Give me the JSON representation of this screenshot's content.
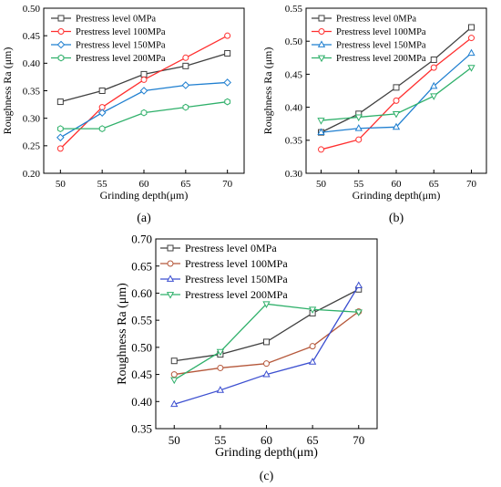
{
  "chart_data": [
    {
      "panel_label": "(a)",
      "type": "line",
      "xlabel": "Grinding depth(μm)",
      "ylabel": "Roughness Ra (μm)",
      "x": [
        50,
        55,
        60,
        65,
        70
      ],
      "xticks": [
        "50",
        "55",
        "60",
        "65",
        "70"
      ],
      "ylim": [
        0.2,
        0.5
      ],
      "yticks": [
        "0.20",
        "0.25",
        "0.30",
        "0.35",
        "0.40",
        "0.45",
        "0.50"
      ],
      "grid": false,
      "legend_position": "top-left",
      "series": [
        {
          "name": "Prestress level 0MPa",
          "values": [
            0.33,
            0.35,
            0.38,
            0.395,
            0.418
          ],
          "color": "#404040",
          "marker": "square"
        },
        {
          "name": "Prestress level 100MPa",
          "values": [
            0.245,
            0.32,
            0.37,
            0.41,
            0.45
          ],
          "color": "#ff2f2f",
          "marker": "circle"
        },
        {
          "name": "Prestress level 150MPa",
          "values": [
            0.265,
            0.31,
            0.35,
            0.36,
            0.365
          ],
          "color": "#1f7fd0",
          "marker": "diamond"
        },
        {
          "name": "Prestress level 200MPa",
          "values": [
            0.281,
            0.281,
            0.31,
            0.32,
            0.33
          ],
          "color": "#2fb06a",
          "marker": "hexagon"
        }
      ]
    },
    {
      "panel_label": "(b)",
      "type": "line",
      "xlabel": "Grinding depth(μm)",
      "ylabel": "Roughness Ra (μm)",
      "x": [
        50,
        55,
        60,
        65,
        70
      ],
      "xticks": [
        "50",
        "55",
        "60",
        "65",
        "70"
      ],
      "ylim": [
        0.3,
        0.55
      ],
      "yticks": [
        "0.30",
        "0.35",
        "0.40",
        "0.45",
        "0.50",
        "0.55"
      ],
      "grid": false,
      "legend_position": "top-left",
      "series": [
        {
          "name": "Prestress level 0MPa",
          "values": [
            0.362,
            0.39,
            0.43,
            0.472,
            0.521
          ],
          "color": "#404040",
          "marker": "square"
        },
        {
          "name": "Prestress level 100MPa",
          "values": [
            0.336,
            0.351,
            0.41,
            0.46,
            0.505
          ],
          "color": "#ff2f2f",
          "marker": "circle"
        },
        {
          "name": "Prestress level 150MPa",
          "values": [
            0.362,
            0.368,
            0.37,
            0.432,
            0.482
          ],
          "color": "#1f7fd0",
          "marker": "triangle"
        },
        {
          "name": "Prestress level 200MPa",
          "values": [
            0.38,
            0.385,
            0.39,
            0.417,
            0.46
          ],
          "color": "#2fb06a",
          "marker": "triangle-down"
        }
      ]
    },
    {
      "panel_label": "(c)",
      "type": "line",
      "xlabel": "Grinding depth(μm)",
      "ylabel": "Roughness Ra (μm)",
      "x": [
        50,
        55,
        60,
        65,
        70
      ],
      "xticks": [
        "50",
        "55",
        "60",
        "65",
        "70"
      ],
      "ylim": [
        0.35,
        0.7
      ],
      "yticks": [
        "0.35",
        "0.40",
        "0.45",
        "0.50",
        "0.55",
        "0.60",
        "0.65",
        "0.70"
      ],
      "grid": false,
      "legend_position": "top-left",
      "series": [
        {
          "name": "Prestress level 0MPa",
          "values": [
            0.475,
            0.487,
            0.51,
            0.563,
            0.607
          ],
          "color": "#404040",
          "marker": "square"
        },
        {
          "name": "Prestress level 100MPa",
          "values": [
            0.45,
            0.462,
            0.47,
            0.502,
            0.566
          ],
          "color": "#b5573a",
          "marker": "circle"
        },
        {
          "name": "Prestress level 150MPa",
          "values": [
            0.395,
            0.421,
            0.45,
            0.473,
            0.614
          ],
          "color": "#3c4fd0",
          "marker": "triangle"
        },
        {
          "name": "Prestress level 200MPa",
          "values": [
            0.44,
            0.492,
            0.58,
            0.57,
            0.565
          ],
          "color": "#2fb06a",
          "marker": "triangle-down"
        }
      ]
    }
  ]
}
